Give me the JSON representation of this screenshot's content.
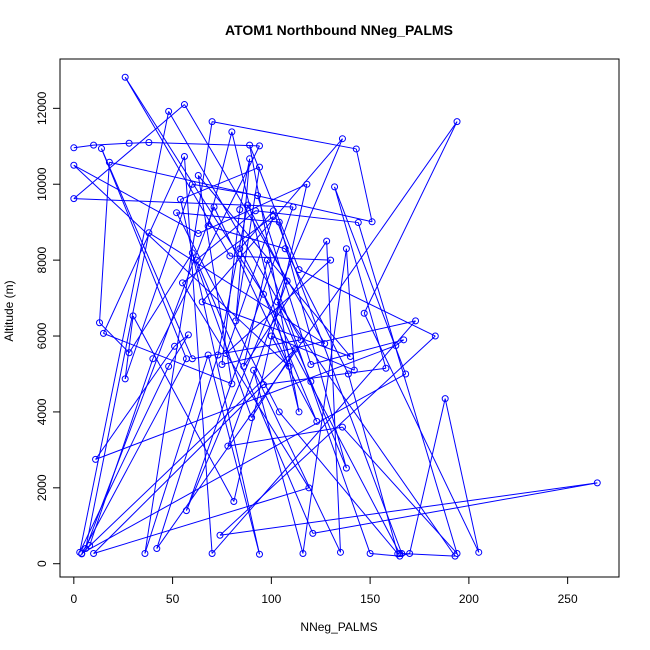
{
  "chart_data": {
    "type": "scatter",
    "title": "ATOM1 Northbound NNeg_PALMS",
    "xlabel": "NNeg_PALMS",
    "ylabel": "Altitude (m)",
    "xlim": [
      -7,
      276
    ],
    "ylim": [
      -350,
      13300
    ],
    "x_ticks": [
      0,
      50,
      100,
      150,
      200,
      250
    ],
    "y_ticks": [
      0,
      2000,
      4000,
      6000,
      8000,
      10000,
      12000
    ],
    "grid": false,
    "legend": "none",
    "line_color": "#0000ff",
    "marker": "open-circle",
    "connected": true,
    "series": [
      {
        "points": [
          [
            0,
            10960
          ],
          [
            10,
            11030
          ],
          [
            28,
            11080
          ],
          [
            38,
            11100
          ],
          [
            94,
            11010
          ],
          [
            40,
            5400
          ],
          [
            8,
            480
          ],
          [
            4,
            260
          ],
          [
            57,
            5400
          ],
          [
            14,
            10940
          ],
          [
            60,
            5400
          ],
          [
            115,
            5900
          ],
          [
            48,
            11920
          ],
          [
            3,
            300
          ],
          [
            48,
            5200
          ],
          [
            58,
            6030
          ],
          [
            51,
            5730
          ],
          [
            11,
            2750
          ],
          [
            163,
            5750
          ],
          [
            167,
            5900
          ],
          [
            120,
            5250
          ],
          [
            93,
            9700
          ],
          [
            60,
            10000
          ],
          [
            26,
            4870
          ],
          [
            30,
            6530
          ],
          [
            81,
            1640
          ],
          [
            118,
            10000
          ],
          [
            63,
            8700
          ],
          [
            0,
            10500
          ],
          [
            109,
            5200
          ],
          [
            71,
            9400
          ],
          [
            6,
            400
          ],
          [
            38,
            8720
          ],
          [
            127,
            5800
          ],
          [
            56,
            12100
          ],
          [
            0,
            9620
          ],
          [
            111,
            9400
          ],
          [
            57,
            1400
          ],
          [
            136,
            11200
          ],
          [
            65,
            6900
          ],
          [
            140,
            5460
          ],
          [
            63,
            10230
          ],
          [
            80,
            4740
          ],
          [
            15,
            6070
          ],
          [
            56,
            10730
          ],
          [
            70,
            270
          ],
          [
            173,
            6400
          ],
          [
            75,
            5250
          ],
          [
            84,
            9330
          ],
          [
            89,
            10670
          ],
          [
            82,
            6400
          ],
          [
            94,
            10450
          ],
          [
            54,
            9600
          ],
          [
            94,
            250
          ],
          [
            68,
            5500
          ],
          [
            36,
            270
          ],
          [
            70,
            11650
          ],
          [
            143,
            10930
          ],
          [
            151,
            9010
          ],
          [
            18,
            10580
          ],
          [
            13,
            6350
          ],
          [
            28,
            5560
          ],
          [
            60,
            8190
          ],
          [
            90,
            3850
          ],
          [
            112,
            5650
          ],
          [
            4,
            270
          ],
          [
            168,
            5000
          ],
          [
            132,
            9930
          ],
          [
            158,
            5150
          ],
          [
            96,
            4720
          ],
          [
            10,
            270
          ],
          [
            119,
            2000
          ],
          [
            55,
            7400
          ],
          [
            101,
            9150
          ],
          [
            77,
            5540
          ],
          [
            130,
            8000
          ],
          [
            79,
            8110
          ],
          [
            26,
            12820
          ],
          [
            96,
            7100
          ],
          [
            123,
            3750
          ],
          [
            100,
            6000
          ],
          [
            142,
            5100
          ],
          [
            138,
            8300
          ],
          [
            116,
            270
          ],
          [
            91,
            5100
          ],
          [
            135,
            300
          ],
          [
            128,
            8500
          ],
          [
            86,
            5200
          ],
          [
            98,
            8000
          ],
          [
            150,
            270
          ],
          [
            165,
            200
          ],
          [
            170,
            270
          ],
          [
            188,
            4350
          ],
          [
            205,
            300
          ],
          [
            147,
            6600
          ],
          [
            194,
            11650
          ],
          [
            42,
            400
          ],
          [
            73,
            5500
          ],
          [
            88,
            9450
          ],
          [
            108,
            7450
          ],
          [
            78,
            3100
          ],
          [
            136,
            3600
          ],
          [
            194,
            270
          ],
          [
            144,
            8990
          ],
          [
            92,
            9300
          ],
          [
            62,
            8000
          ],
          [
            121,
            800
          ],
          [
            265,
            2130
          ],
          [
            74,
            750
          ],
          [
            183,
            6000
          ],
          [
            114,
            7750
          ],
          [
            89,
            11030
          ],
          [
            114,
            4000
          ],
          [
            80,
            11380
          ],
          [
            68,
            8900
          ],
          [
            107,
            8300
          ],
          [
            139,
            5000
          ],
          [
            164,
            260
          ],
          [
            104,
            4000
          ],
          [
            52,
            9250
          ],
          [
            104,
            9000
          ],
          [
            138,
            2520
          ],
          [
            120,
            4800
          ],
          [
            103,
            6900
          ],
          [
            193,
            200
          ],
          [
            166,
            270
          ],
          [
            101,
            9300
          ],
          [
            84,
            8300
          ],
          [
            165,
            270
          ]
        ]
      }
    ]
  }
}
